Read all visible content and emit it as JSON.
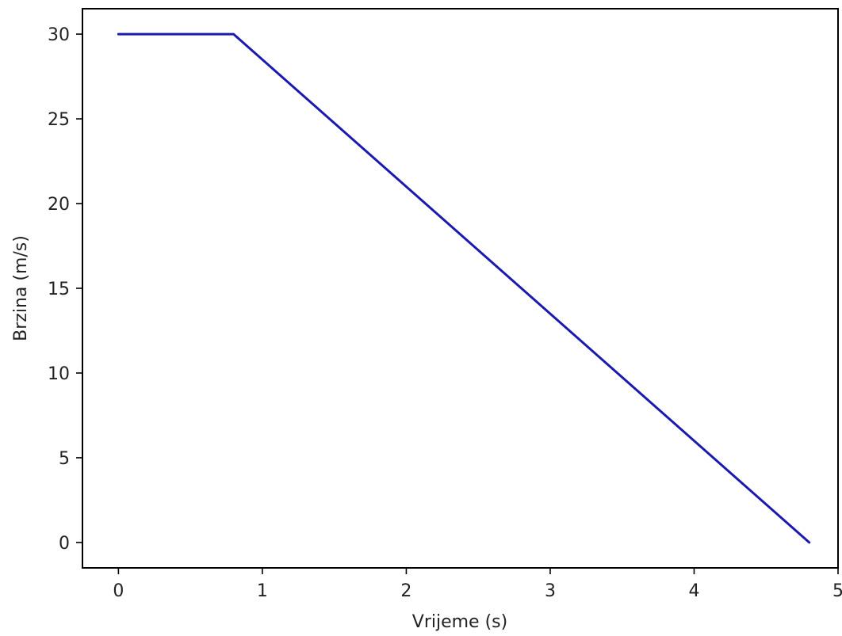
{
  "chart_data": {
    "type": "line",
    "title": "",
    "xlabel": "Vrijeme (s)",
    "ylabel": "Brzina (m/s)",
    "xlim": [
      -0.25,
      5.0
    ],
    "ylim": [
      -1.5,
      31.5
    ],
    "xticks": [
      0,
      1,
      2,
      3,
      4,
      5
    ],
    "yticks": [
      0,
      5,
      10,
      15,
      20,
      25,
      30
    ],
    "xtick_labels": [
      "0",
      "1",
      "2",
      "3",
      "4",
      "5"
    ],
    "ytick_labels": [
      "0",
      "5",
      "10",
      "15",
      "20",
      "25",
      "30"
    ],
    "grid": false,
    "legend": "none",
    "series": [
      {
        "color": "#1a1ab0",
        "x": [
          0,
          0.8,
          4.8
        ],
        "y": [
          30,
          30,
          0
        ]
      }
    ]
  }
}
